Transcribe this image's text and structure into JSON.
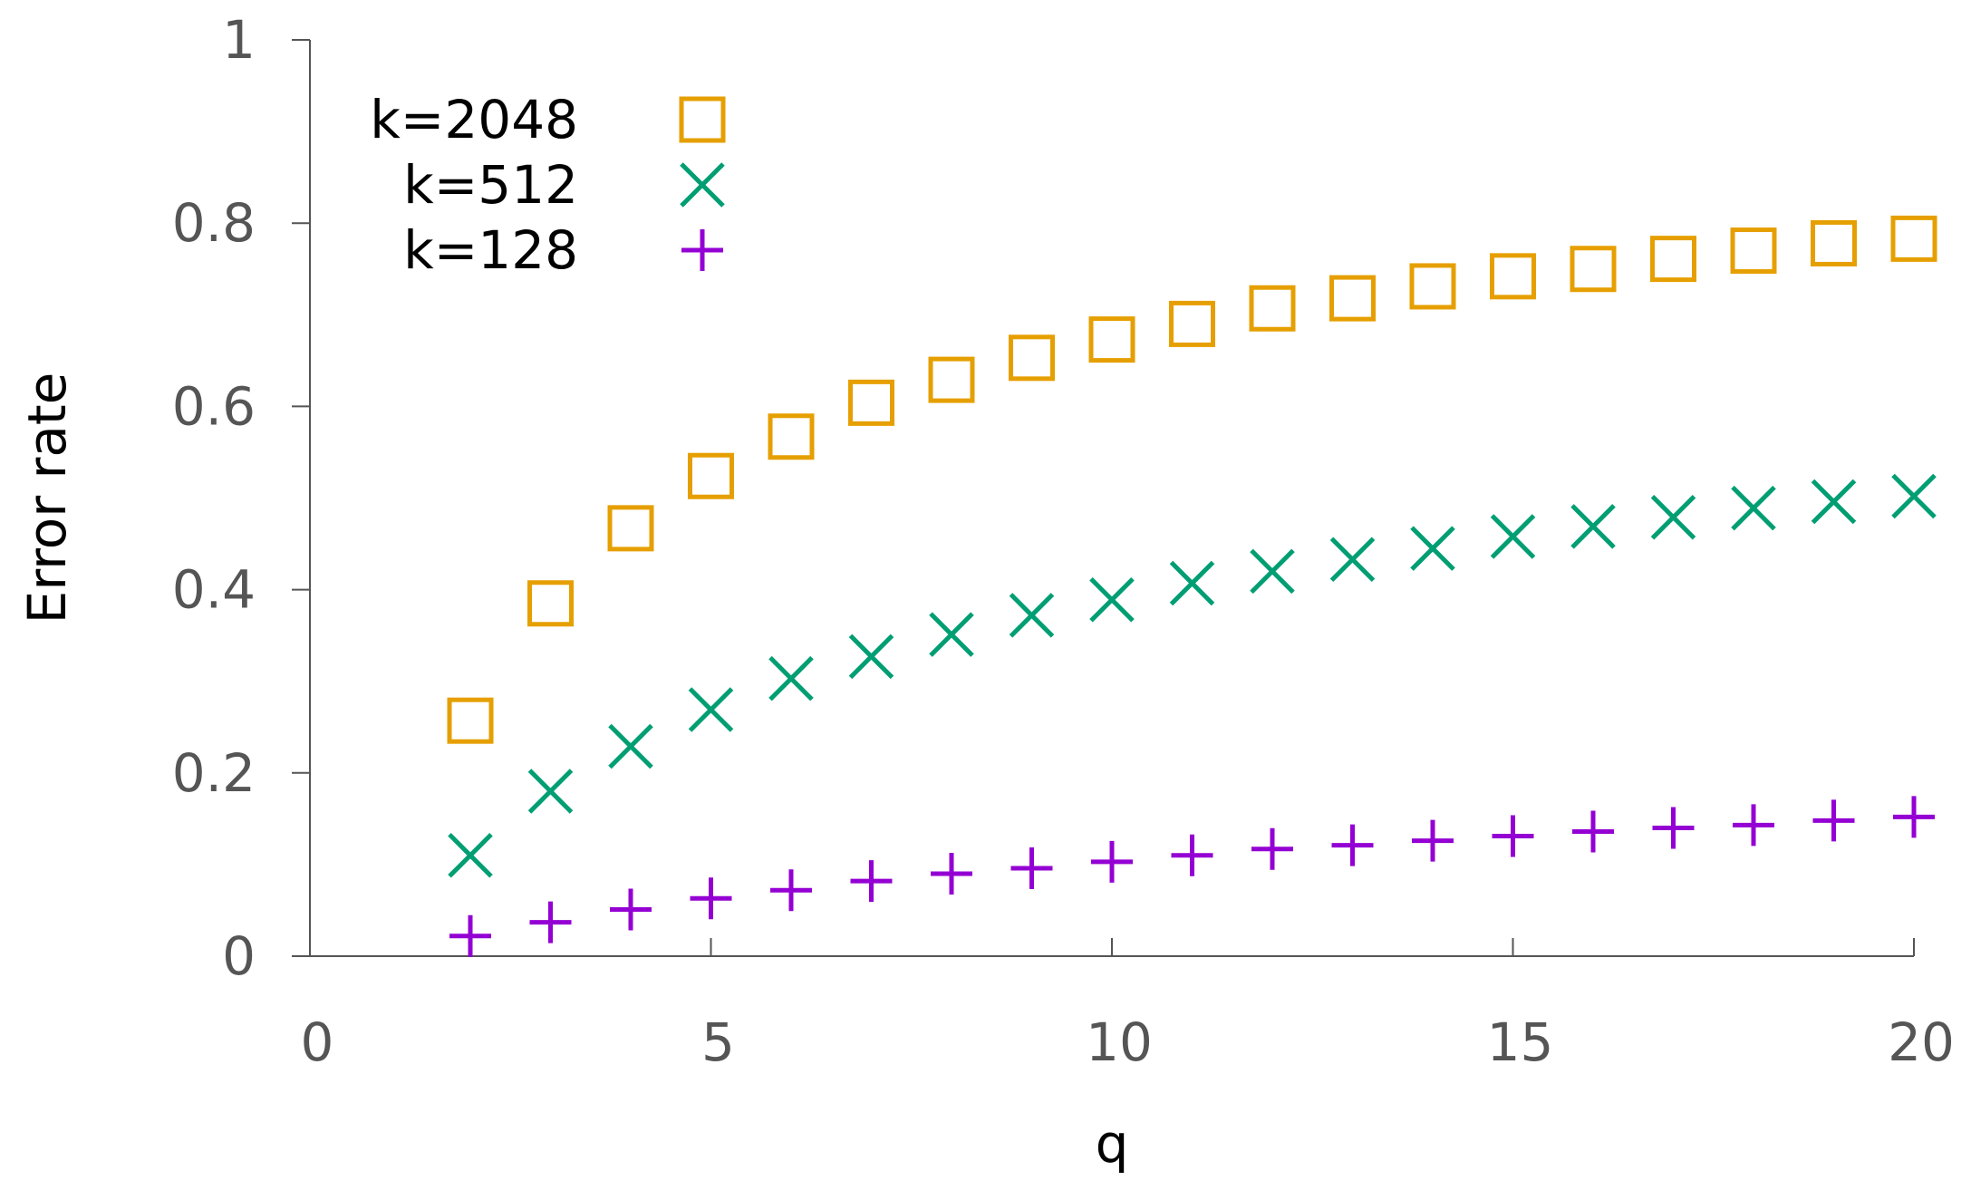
{
  "chart_data": {
    "type": "scatter",
    "title": "",
    "xlabel": "q",
    "ylabel": "Error rate",
    "xlim": [
      0,
      20
    ],
    "ylim": [
      0,
      1
    ],
    "x_ticks": [
      0,
      5,
      10,
      15,
      20
    ],
    "y_ticks": [
      0,
      0.2,
      0.4,
      0.6,
      0.8,
      1
    ],
    "x_tick_labels": [
      "0",
      "5",
      "10",
      "15",
      "20"
    ],
    "y_tick_labels": [
      "0",
      "0.2",
      "0.4",
      "0.6",
      "0.8",
      "1"
    ],
    "grid": false,
    "legend_position": "top-left",
    "x": [
      2,
      3,
      4,
      5,
      6,
      7,
      8,
      9,
      10,
      11,
      12,
      13,
      14,
      15,
      16,
      17,
      18,
      19,
      20
    ],
    "series": [
      {
        "name": "k=2048",
        "marker": "square",
        "color": "#e69f00",
        "values": [
          0.257,
          0.385,
          0.467,
          0.524,
          0.567,
          0.604,
          0.629,
          0.653,
          0.673,
          0.69,
          0.707,
          0.718,
          0.731,
          0.742,
          0.75,
          0.761,
          0.77,
          0.778,
          0.783
        ]
      },
      {
        "name": "k=512",
        "marker": "cross",
        "color": "#009e73",
        "values": [
          0.11,
          0.18,
          0.229,
          0.269,
          0.303,
          0.327,
          0.351,
          0.372,
          0.389,
          0.407,
          0.42,
          0.433,
          0.445,
          0.458,
          0.469,
          0.479,
          0.489,
          0.496,
          0.502
        ]
      },
      {
        "name": "k=128",
        "marker": "plus",
        "color": "#9400d3",
        "values": [
          0.022,
          0.037,
          0.051,
          0.063,
          0.072,
          0.082,
          0.09,
          0.096,
          0.103,
          0.11,
          0.117,
          0.121,
          0.126,
          0.131,
          0.136,
          0.14,
          0.143,
          0.148,
          0.152
        ]
      }
    ]
  }
}
